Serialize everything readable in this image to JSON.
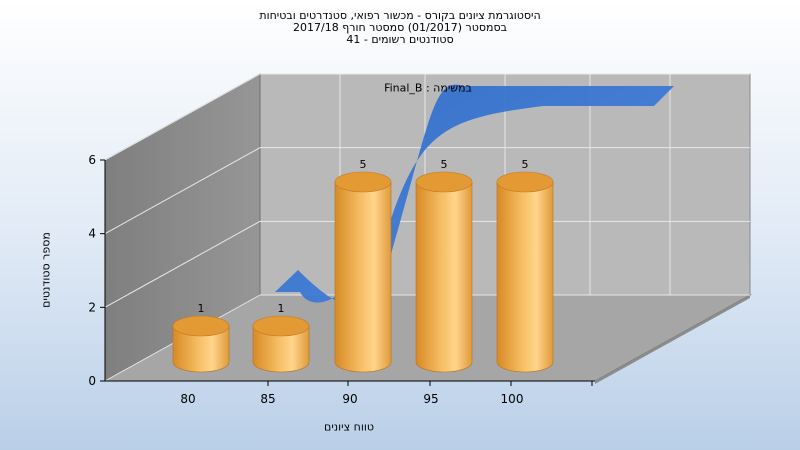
{
  "chart_data": {
    "type": "bar",
    "title_lines": [
      "היסטוגרמת ציונים בקורס - מכשור רפואי, סטנדרטים ובטיחות",
      "בסמסטר  (01/2017)  סמסטר חורף 2017/18",
      "סטודנטים רשומים - 41"
    ],
    "annotation": "Final_B : במשימה",
    "xlabel": "טווח ציונים",
    "ylabel": "מספר סטודנטים",
    "x_ticks": [
      "80",
      "85",
      "90",
      "95",
      "100"
    ],
    "y_ticks": [
      "0",
      "2",
      "4",
      "6"
    ],
    "ylim": [
      0,
      6
    ],
    "categories": [
      "80",
      "85",
      "90",
      "95",
      "100"
    ],
    "values": [
      1,
      1,
      5,
      5,
      5
    ],
    "trend_line": [
      1,
      1,
      5,
      5,
      5
    ],
    "grid": true,
    "bar_color": "#e8a94a",
    "trend_color": "#3c78d2",
    "wall_color": "#b4b4b4"
  }
}
